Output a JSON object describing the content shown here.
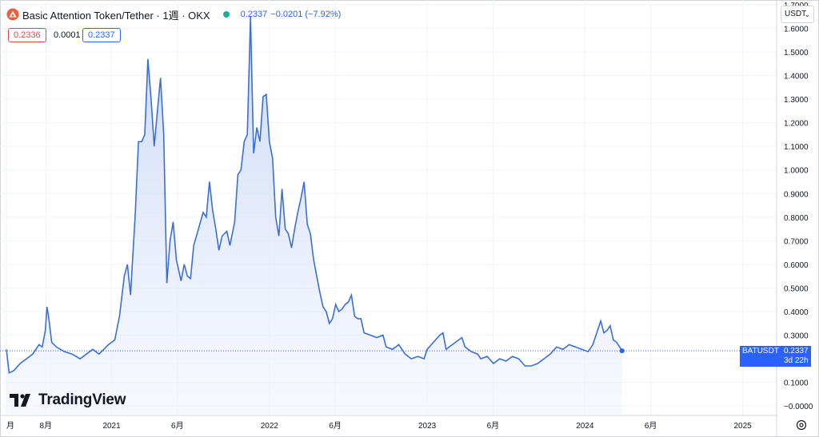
{
  "header": {
    "title": "Basic Attention Token/Tether · 1週 · OKX",
    "price": "0.2337",
    "change": "−0.0201 (−7.92%)"
  },
  "quote": {
    "bid": "0.2336",
    "spread": "0.0001",
    "ask": "0.2337"
  },
  "currency_button": "USDT",
  "logo_text": "TradingView",
  "last_price_tag": {
    "symbol": "BATUSDT",
    "price": "0.2337",
    "countdown": "3d 22h"
  },
  "colors": {
    "line": "#3a6fd8",
    "fill_top": "#c9d6f6",
    "accent": "#2962ff",
    "bid": "#e04747",
    "live_dot": "#22ab94"
  },
  "chart_data": {
    "type": "area",
    "ylim": [
      -0.04,
      1.72
    ],
    "y_ticks": [
      "−0.0000",
      "0.1000",
      "0.2000",
      "0.3000",
      "0.4000",
      "0.5000",
      "0.6000",
      "0.7000",
      "0.8000",
      "0.9000",
      "1.0000",
      "1.1000",
      "1.2000",
      "1.3000",
      "1.4000",
      "1.5000",
      "1.6000",
      "1.7000"
    ],
    "y_tick_values": [
      0,
      0.1,
      0.2,
      0.3,
      0.4,
      0.5,
      0.6,
      0.7,
      0.8,
      0.9,
      1.0,
      1.1,
      1.2,
      1.3,
      1.4,
      1.5,
      1.6,
      1.7
    ],
    "x_ticks": [
      {
        "label": "月",
        "t": 2020.333
      },
      {
        "label": "8月",
        "t": 2020.583
      },
      {
        "label": "2021",
        "t": 2021.0
      },
      {
        "label": "6月",
        "t": 2021.417
      },
      {
        "label": "2022",
        "t": 2022.0
      },
      {
        "label": "6月",
        "t": 2022.417
      },
      {
        "label": "2023",
        "t": 2023.0
      },
      {
        "label": "6月",
        "t": 2023.417
      },
      {
        "label": "2024",
        "t": 2024.0
      },
      {
        "label": "6月",
        "t": 2024.417
      },
      {
        "label": "2025",
        "t": 2025.0
      }
    ],
    "xlim": [
      2020.333,
      2025.083
    ],
    "last_value": 0.2337,
    "series": [
      {
        "points": [
          [
            2020.333,
            0.24
          ],
          [
            2020.35,
            0.14
          ],
          [
            2020.38,
            0.15
          ],
          [
            2020.42,
            0.18
          ],
          [
            2020.46,
            0.2
          ],
          [
            2020.5,
            0.22
          ],
          [
            2020.54,
            0.26
          ],
          [
            2020.56,
            0.25
          ],
          [
            2020.58,
            0.32
          ],
          [
            2020.59,
            0.42
          ],
          [
            2020.6,
            0.38
          ],
          [
            2020.62,
            0.27
          ],
          [
            2020.65,
            0.25
          ],
          [
            2020.7,
            0.23
          ],
          [
            2020.75,
            0.22
          ],
          [
            2020.8,
            0.2
          ],
          [
            2020.84,
            0.22
          ],
          [
            2020.88,
            0.24
          ],
          [
            2020.92,
            0.22
          ],
          [
            2020.95,
            0.24
          ],
          [
            2020.98,
            0.26
          ],
          [
            2021.02,
            0.28
          ],
          [
            2021.05,
            0.38
          ],
          [
            2021.08,
            0.55
          ],
          [
            2021.1,
            0.6
          ],
          [
            2021.12,
            0.47
          ],
          [
            2021.15,
            0.82
          ],
          [
            2021.17,
            1.12
          ],
          [
            2021.19,
            1.12
          ],
          [
            2021.21,
            1.15
          ],
          [
            2021.23,
            1.47
          ],
          [
            2021.25,
            1.3
          ],
          [
            2021.27,
            1.1
          ],
          [
            2021.29,
            1.25
          ],
          [
            2021.31,
            1.39
          ],
          [
            2021.33,
            1.15
          ],
          [
            2021.35,
            0.52
          ],
          [
            2021.37,
            0.7
          ],
          [
            2021.39,
            0.78
          ],
          [
            2021.41,
            0.62
          ],
          [
            2021.44,
            0.53
          ],
          [
            2021.46,
            0.6
          ],
          [
            2021.48,
            0.55
          ],
          [
            2021.5,
            0.54
          ],
          [
            2021.52,
            0.68
          ],
          [
            2021.55,
            0.75
          ],
          [
            2021.58,
            0.82
          ],
          [
            2021.6,
            0.8
          ],
          [
            2021.62,
            0.95
          ],
          [
            2021.64,
            0.83
          ],
          [
            2021.66,
            0.75
          ],
          [
            2021.68,
            0.66
          ],
          [
            2021.7,
            0.72
          ],
          [
            2021.73,
            0.74
          ],
          [
            2021.75,
            0.68
          ],
          [
            2021.78,
            0.78
          ],
          [
            2021.8,
            0.98
          ],
          [
            2021.82,
            1.0
          ],
          [
            2021.84,
            1.12
          ],
          [
            2021.86,
            1.15
          ],
          [
            2021.88,
            1.65
          ],
          [
            2021.9,
            1.07
          ],
          [
            2021.92,
            1.18
          ],
          [
            2021.94,
            1.12
          ],
          [
            2021.96,
            1.31
          ],
          [
            2021.98,
            1.32
          ],
          [
            2022.0,
            1.12
          ],
          [
            2022.02,
            1.05
          ],
          [
            2022.04,
            0.8
          ],
          [
            2022.06,
            0.72
          ],
          [
            2022.08,
            0.92
          ],
          [
            2022.1,
            0.75
          ],
          [
            2022.12,
            0.73
          ],
          [
            2022.14,
            0.67
          ],
          [
            2022.16,
            0.75
          ],
          [
            2022.18,
            0.82
          ],
          [
            2022.2,
            0.88
          ],
          [
            2022.22,
            0.95
          ],
          [
            2022.24,
            0.77
          ],
          [
            2022.26,
            0.73
          ],
          [
            2022.28,
            0.62
          ],
          [
            2022.3,
            0.55
          ],
          [
            2022.32,
            0.48
          ],
          [
            2022.34,
            0.42
          ],
          [
            2022.36,
            0.4
          ],
          [
            2022.38,
            0.35
          ],
          [
            2022.4,
            0.37
          ],
          [
            2022.42,
            0.43
          ],
          [
            2022.44,
            0.4
          ],
          [
            2022.46,
            0.41
          ],
          [
            2022.48,
            0.43
          ],
          [
            2022.5,
            0.44
          ],
          [
            2022.52,
            0.47
          ],
          [
            2022.54,
            0.38
          ],
          [
            2022.56,
            0.37
          ],
          [
            2022.58,
            0.37
          ],
          [
            2022.6,
            0.31
          ],
          [
            2022.64,
            0.3
          ],
          [
            2022.68,
            0.29
          ],
          [
            2022.72,
            0.3
          ],
          [
            2022.74,
            0.25
          ],
          [
            2022.78,
            0.24
          ],
          [
            2022.82,
            0.26
          ],
          [
            2022.86,
            0.22
          ],
          [
            2022.9,
            0.2
          ],
          [
            2022.94,
            0.21
          ],
          [
            2022.98,
            0.2
          ],
          [
            2023.0,
            0.24
          ],
          [
            2023.04,
            0.27
          ],
          [
            2023.08,
            0.3
          ],
          [
            2023.1,
            0.31
          ],
          [
            2023.12,
            0.24
          ],
          [
            2023.14,
            0.25
          ],
          [
            2023.18,
            0.27
          ],
          [
            2023.22,
            0.29
          ],
          [
            2023.24,
            0.25
          ],
          [
            2023.28,
            0.23
          ],
          [
            2023.32,
            0.22
          ],
          [
            2023.34,
            0.2
          ],
          [
            2023.38,
            0.21
          ],
          [
            2023.42,
            0.18
          ],
          [
            2023.46,
            0.2
          ],
          [
            2023.5,
            0.19
          ],
          [
            2023.54,
            0.21
          ],
          [
            2023.58,
            0.2
          ],
          [
            2023.62,
            0.17
          ],
          [
            2023.66,
            0.17
          ],
          [
            2023.7,
            0.18
          ],
          [
            2023.74,
            0.2
          ],
          [
            2023.78,
            0.22
          ],
          [
            2023.82,
            0.25
          ],
          [
            2023.86,
            0.24
          ],
          [
            2023.9,
            0.26
          ],
          [
            2023.94,
            0.25
          ],
          [
            2023.98,
            0.24
          ],
          [
            2024.02,
            0.23
          ],
          [
            2024.05,
            0.26
          ],
          [
            2024.08,
            0.32
          ],
          [
            2024.1,
            0.36
          ],
          [
            2024.12,
            0.31
          ],
          [
            2024.14,
            0.32
          ],
          [
            2024.16,
            0.34
          ],
          [
            2024.18,
            0.28
          ],
          [
            2024.2,
            0.27
          ],
          [
            2024.22,
            0.25
          ],
          [
            2024.235,
            0.2337
          ]
        ]
      }
    ]
  }
}
